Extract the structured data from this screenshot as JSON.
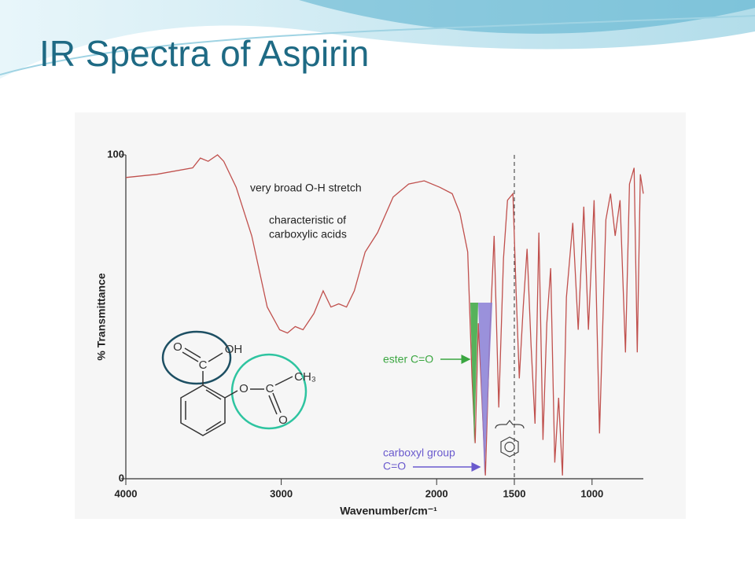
{
  "chart_data": {
    "type": "line",
    "title": "IR Spectra of Aspirin",
    "xlabel": "Wavenumber/cm⁻¹",
    "ylabel": "% Transmittance",
    "annotations": {
      "oh_stretch": "very broad O-H stretch",
      "acid_note": [
        "characteristic of",
        "carboxylic acids"
      ],
      "ester": "ester C=O",
      "carboxyl": [
        "carboxyl group",
        "C=O"
      ]
    },
    "structure_labels": [
      "O",
      "OH",
      "C",
      "O",
      "C",
      "CH₃",
      "O"
    ],
    "reference_line": 1500,
    "color": "#c0504d",
    "x": [
      4000,
      3800,
      3570,
      3520,
      3470,
      3410,
      3370,
      3290,
      3190,
      3090,
      3010,
      2960,
      2910,
      2860,
      2790,
      2730,
      2680,
      2630,
      2580,
      2530,
      2460,
      2380,
      2280,
      2180,
      2080,
      1980,
      1900,
      1850,
      1800,
      1772,
      1752,
      1732,
      1711,
      1686,
      1661,
      1630,
      1600,
      1570,
      1544,
      1509,
      1489,
      1468,
      1443,
      1418,
      1392,
      1367,
      1342,
      1316,
      1291,
      1266,
      1240,
      1215,
      1190,
      1165,
      1124,
      1089,
      1053,
      1023,
      987,
      952,
      911,
      881,
      851,
      820,
      785,
      759,
      729,
      709,
      689,
      670
    ],
    "values": [
      93,
      94,
      96,
      99,
      98,
      100,
      98,
      90,
      75,
      53,
      46,
      45,
      47,
      46,
      51,
      58,
      53,
      54,
      53,
      58,
      70,
      76,
      87,
      91,
      92,
      90,
      88,
      82,
      70,
      31,
      11,
      48,
      27,
      1,
      41,
      75,
      22,
      68,
      86,
      88,
      58,
      31,
      53,
      71,
      41,
      17,
      76,
      12,
      48,
      65,
      5,
      25,
      1,
      56,
      79,
      46,
      84,
      46,
      86,
      14,
      80,
      88,
      75,
      86,
      39,
      91,
      96,
      39,
      94,
      88
    ],
    "xlim": [
      4000,
      670
    ],
    "ylim": [
      0,
      100
    ],
    "xticks": [
      4000,
      3000,
      2000,
      1500,
      1000
    ],
    "yticks": [
      0,
      100
    ]
  }
}
